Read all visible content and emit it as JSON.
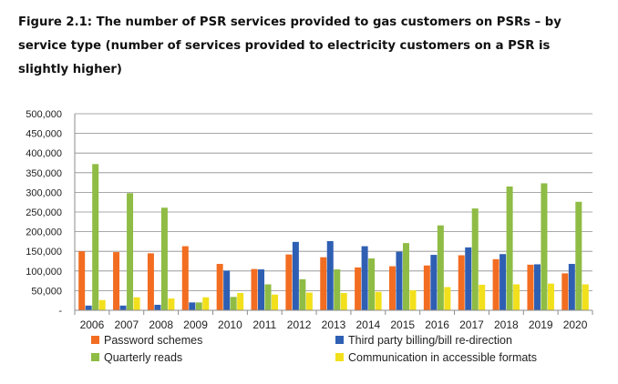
{
  "figure": {
    "title": "Figure 2.1: The number of PSR services provided to gas customers on PSRs – by service type (number of services provided to electricity customers on a PSR is slightly higher)"
  },
  "chart_data": {
    "type": "bar",
    "categories": [
      "2006",
      "2007",
      "2008",
      "2009",
      "2010",
      "2011",
      "2012",
      "2013",
      "2014",
      "2015",
      "2016",
      "2017",
      "2018",
      "2019",
      "2020"
    ],
    "ylim": [
      0,
      500000
    ],
    "yticks": [
      0,
      50000,
      100000,
      150000,
      200000,
      250000,
      300000,
      350000,
      400000,
      450000,
      500000
    ],
    "ytick_labels": [
      "-",
      "50,000",
      "100,000",
      "150,000",
      "200,000",
      "250,000",
      "300,000",
      "350,000",
      "400,000",
      "450,000",
      "500,000"
    ],
    "grid": true,
    "legend_position": "bottom",
    "series": [
      {
        "name": "Password schemes",
        "color": "#f26d21",
        "values": [
          150000,
          148000,
          145000,
          163000,
          118000,
          105000,
          142000,
          135000,
          109000,
          112000,
          114000,
          140000,
          130000,
          116000,
          94000
        ]
      },
      {
        "name": "Third party billing/bill re-direction",
        "color": "#2e5fb3",
        "values": [
          12000,
          12000,
          14000,
          20000,
          101000,
          104000,
          174000,
          176000,
          163000,
          149000,
          141000,
          160000,
          143000,
          117000,
          118000
        ]
      },
      {
        "name": "Quarterly reads",
        "color": "#8fbc45",
        "values": [
          372000,
          298000,
          261000,
          20000,
          34000,
          66000,
          79000,
          104000,
          132000,
          171000,
          216000,
          259000,
          315000,
          323000,
          276000
        ]
      },
      {
        "name": "Communication in accessible formats",
        "color": "#f2e01c",
        "values": [
          26000,
          33000,
          30000,
          33000,
          44000,
          40000,
          45000,
          44000,
          47000,
          51000,
          59000,
          65000,
          66000,
          68000,
          66000
        ]
      }
    ]
  }
}
